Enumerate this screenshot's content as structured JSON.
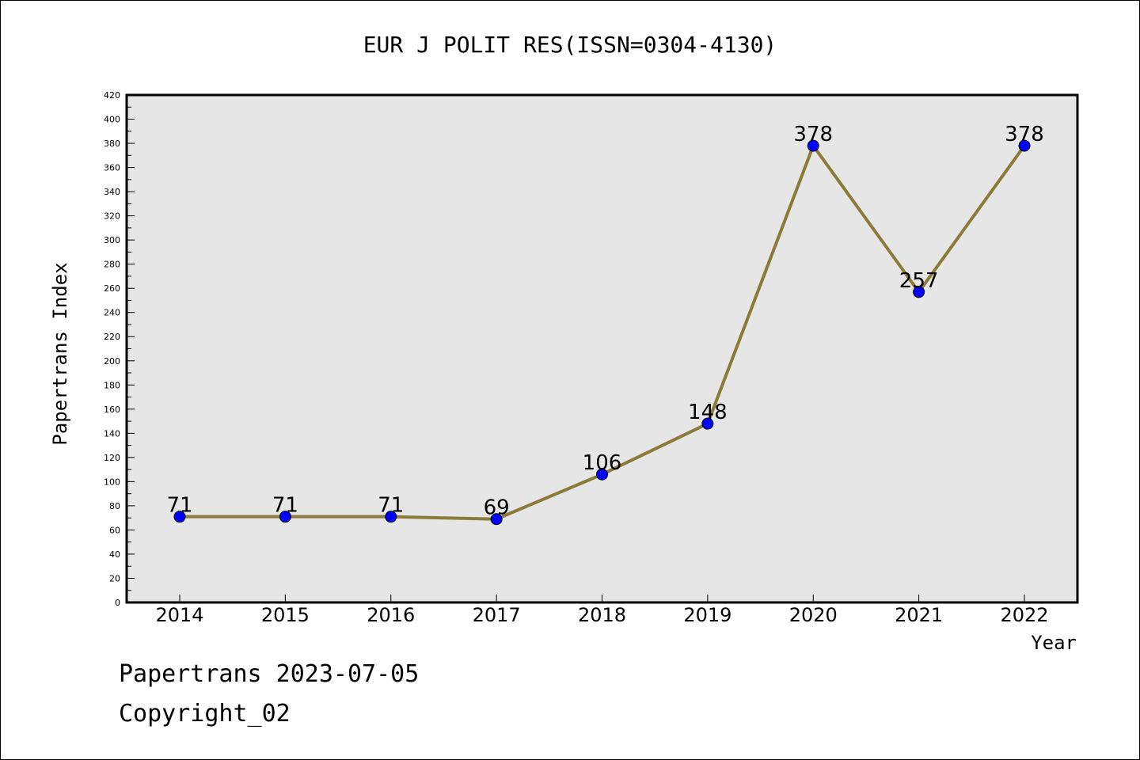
{
  "chart_data": {
    "type": "line",
    "title": "EUR J POLIT RES(ISSN=0304-4130)",
    "xlabel": "Year",
    "ylabel": "Papertrans Index",
    "categories": [
      "2014",
      "2015",
      "2016",
      "2017",
      "2018",
      "2019",
      "2020",
      "2021",
      "2022"
    ],
    "series": [
      {
        "values": [
          71,
          71,
          71,
          69,
          106,
          148,
          378,
          257,
          378
        ]
      }
    ],
    "ylim": [
      0,
      420
    ],
    "yticks": [
      0,
      20,
      40,
      60,
      80,
      100,
      120,
      140,
      160,
      180,
      200,
      220,
      240,
      260,
      280,
      300,
      320,
      340,
      360,
      380,
      400,
      420
    ],
    "grid": false,
    "colors": {
      "line": "#8B7A3A",
      "marker": "#0000FF",
      "plot_background": "#E6E6E6"
    }
  },
  "footer": {
    "line1": "Papertrans 2023-07-05",
    "line2": "Copyright_02"
  }
}
